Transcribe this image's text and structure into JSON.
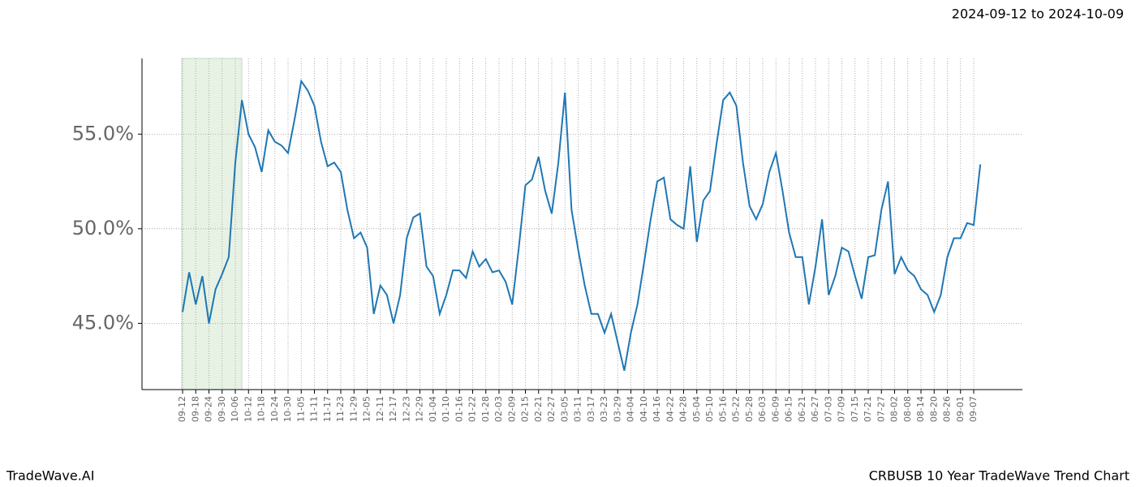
{
  "chart_data": {
    "type": "line",
    "title": "CRBUSB 10 Year TradeWave Trend Chart",
    "subtitle": "2024-09-12 to 2024-10-09",
    "source": "TradeWave.AI",
    "categories": [
      "09-12",
      null,
      "09-18",
      null,
      "09-24",
      null,
      "09-30",
      null,
      "10-06",
      null,
      "10-12",
      null,
      "10-18",
      null,
      "10-24",
      null,
      "10-30",
      null,
      "11-05",
      null,
      "11-11",
      null,
      "11-17",
      null,
      "11-23",
      null,
      "11-29",
      null,
      "12-05",
      null,
      "12-11",
      null,
      "12-17",
      null,
      "12-23",
      null,
      "12-29",
      null,
      "01-04",
      null,
      "01-10",
      null,
      "01-16",
      null,
      "01-22",
      null,
      "01-28",
      null,
      "02-03",
      null,
      "02-09",
      null,
      "02-15",
      null,
      "02-21",
      null,
      "02-27",
      null,
      "03-05",
      null,
      "03-11",
      null,
      "03-17",
      null,
      "03-23",
      null,
      "03-29",
      null,
      "04-04",
      null,
      "04-10",
      null,
      "04-16",
      null,
      "04-22",
      null,
      "04-28",
      null,
      "05-04",
      null,
      "05-10",
      null,
      "05-16",
      null,
      "05-22",
      null,
      "05-28",
      null,
      "06-03",
      null,
      "06-09",
      null,
      "06-15",
      null,
      "06-21",
      null,
      "06-27",
      null,
      "07-03",
      null,
      "07-09",
      null,
      "07-15",
      null,
      "07-21",
      null,
      "07-27",
      null,
      "08-02",
      null,
      "08-08",
      null,
      "08-14",
      null,
      "08-20",
      null,
      "08-26",
      null,
      "09-01",
      null,
      "09-07",
      null
    ],
    "series": [
      {
        "color": "#1f77b4",
        "values": [
          45.6,
          47.7,
          46.0,
          47.5,
          45.0,
          46.8,
          47.6,
          48.5,
          53.5,
          56.8,
          55.0,
          54.3,
          53.0,
          55.2,
          54.6,
          54.4,
          54.0,
          55.8,
          57.8,
          57.3,
          56.5,
          54.6,
          53.3,
          53.5,
          53.0,
          51.0,
          49.5,
          49.8,
          49.0,
          45.5,
          47.0,
          46.5,
          45.0,
          46.5,
          49.5,
          50.6,
          50.8,
          48.0,
          47.5,
          45.5,
          46.5,
          47.8,
          47.8,
          47.4,
          48.8,
          48.0,
          48.4,
          47.7,
          47.8,
          47.2,
          46.0,
          49.0,
          52.3,
          52.6,
          53.8,
          52.0,
          50.8,
          53.5,
          57.2,
          51.0,
          48.9,
          47.0,
          45.5,
          45.5,
          44.5,
          45.5,
          44.0,
          42.5,
          44.5,
          46.0,
          48.2,
          50.5,
          52.5,
          52.7,
          50.5,
          50.2,
          50.0,
          53.3,
          49.3,
          51.5,
          52.0,
          54.5,
          56.8,
          57.2,
          56.5,
          53.5,
          51.2,
          50.5,
          51.3,
          53.0,
          54.0,
          52.0,
          49.8,
          48.5,
          48.5,
          46.0,
          48.0,
          50.5,
          46.5,
          47.5,
          49.0,
          48.8,
          47.5,
          46.3,
          48.5,
          48.6,
          51.0,
          52.5,
          47.6,
          48.5,
          47.8,
          47.5,
          46.8,
          46.5,
          45.6,
          46.5,
          48.5,
          49.5,
          49.5,
          50.3,
          50.2,
          53.4
        ]
      }
    ],
    "ylim": [
      41.5,
      59.0
    ],
    "yticks": [
      {
        "value": 45,
        "label": "45.0%"
      },
      {
        "value": 50,
        "label": "50.0%"
      },
      {
        "value": 55,
        "label": "55.0%"
      }
    ],
    "grid": true
  }
}
